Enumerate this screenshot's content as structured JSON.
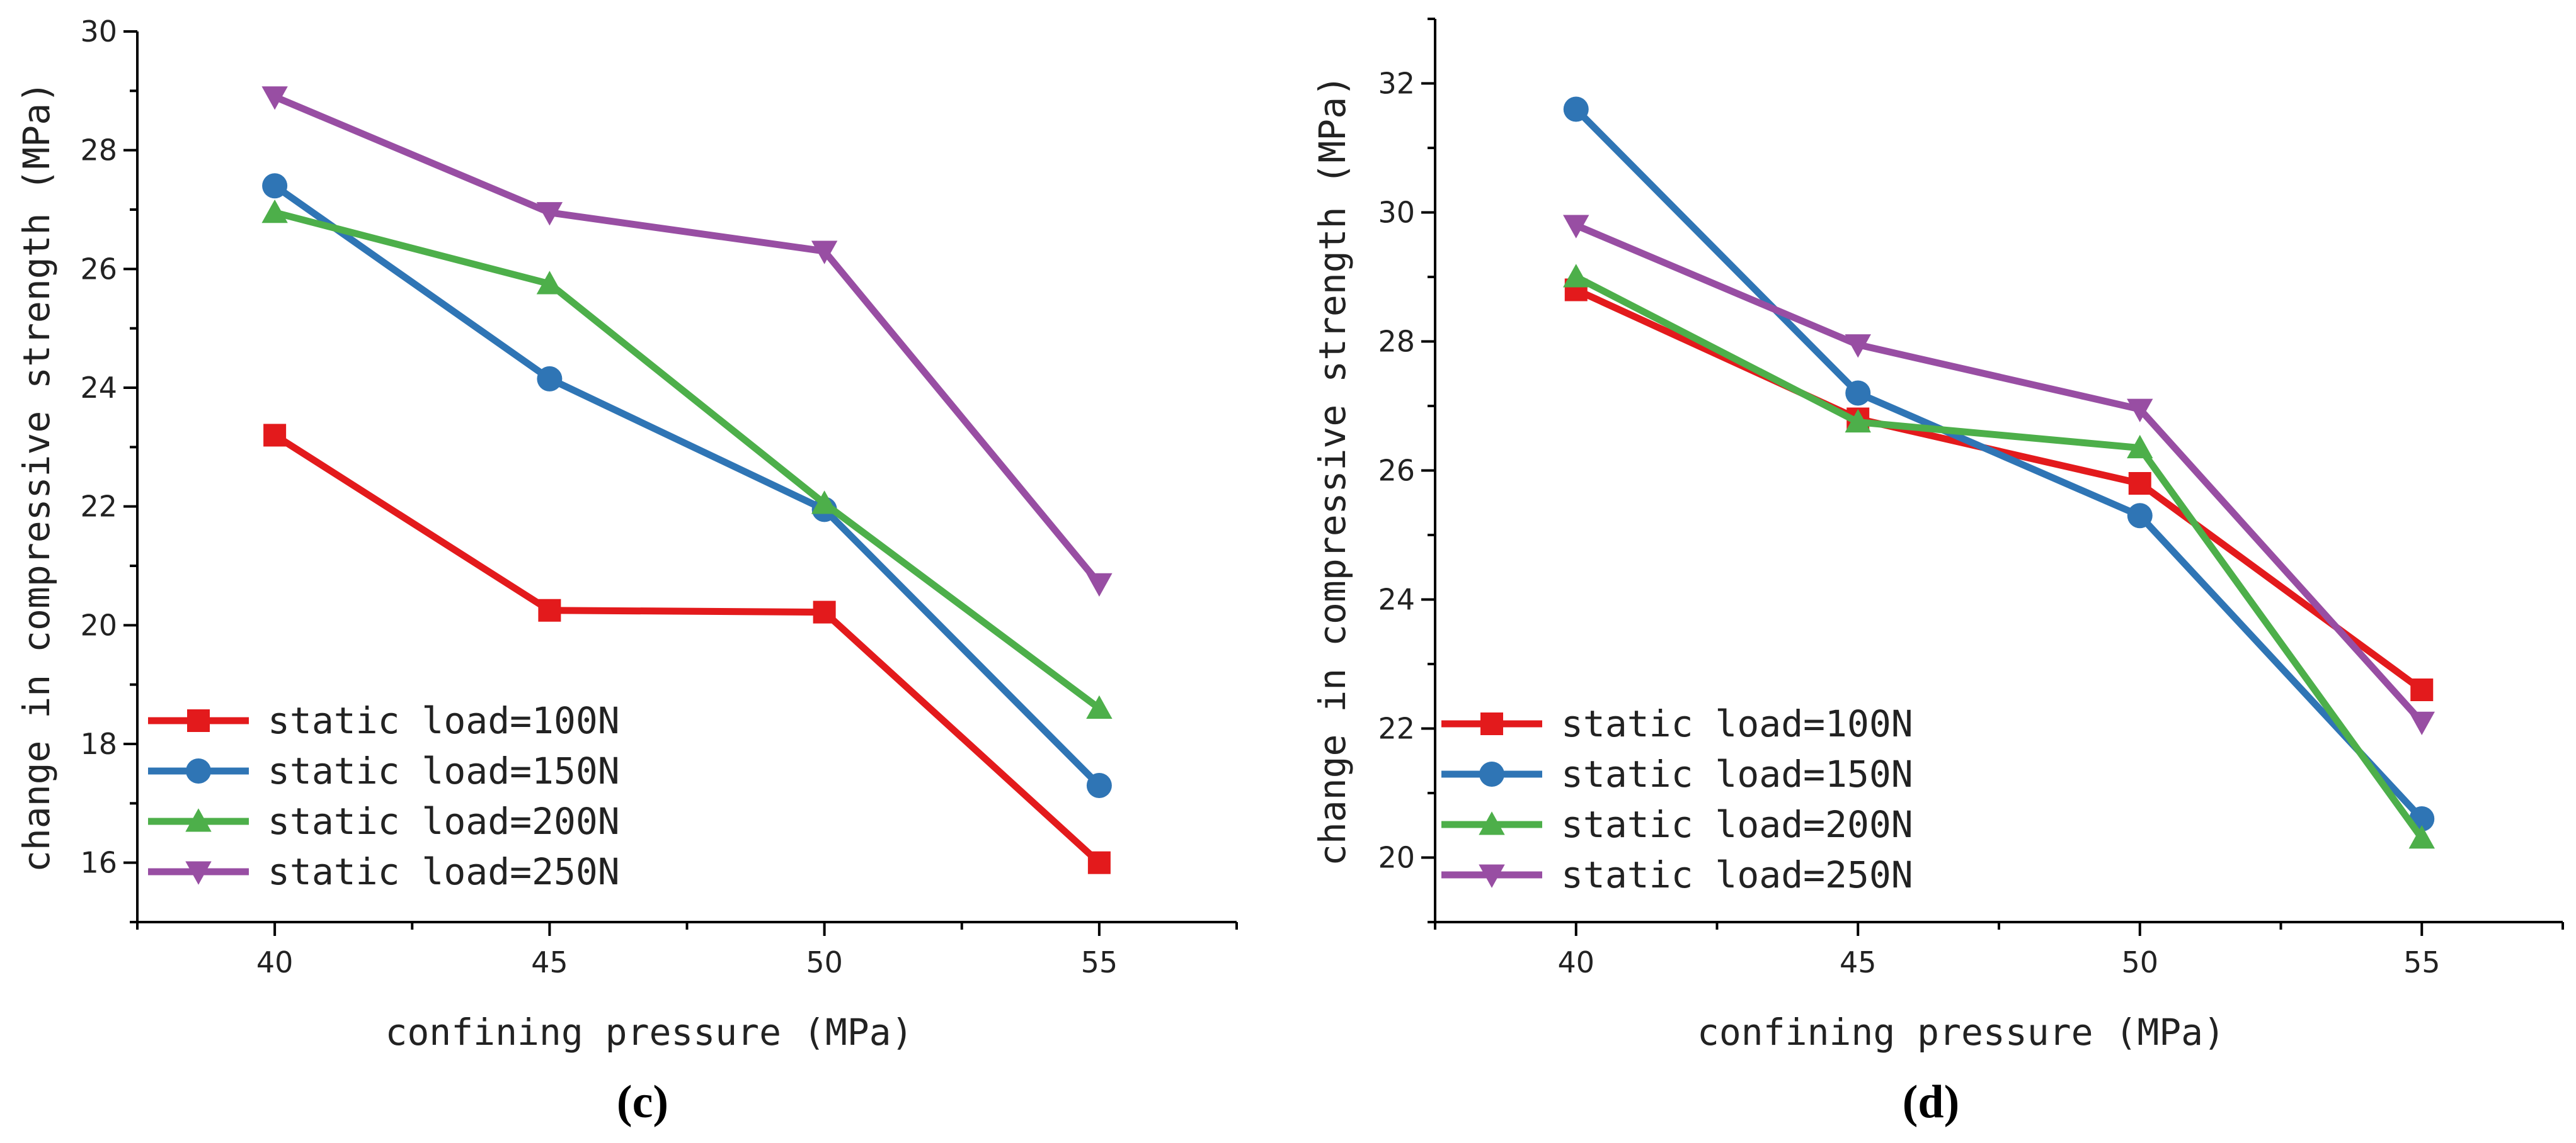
{
  "chart_data": [
    {
      "type": "line",
      "panel_label": "(c)",
      "xlabel": "confining pressure (MPa)",
      "ylabel": "change in compressive strength (MPa)",
      "x": [
        40,
        45,
        50,
        55
      ],
      "xticks": [
        40,
        45,
        50,
        55
      ],
      "xlim": [
        37.5,
        57.5
      ],
      "ylim": [
        15,
        30
      ],
      "yticks": [
        16,
        18,
        20,
        22,
        24,
        26,
        28,
        30
      ],
      "legend_position": "bottom-left",
      "series": [
        {
          "name": "static load=100N",
          "color": "#e31a1c",
          "marker": "square",
          "values": [
            23.2,
            20.25,
            20.22,
            16.0
          ]
        },
        {
          "name": "static load=150N",
          "color": "#2f75b5",
          "marker": "circle",
          "values": [
            27.4,
            24.15,
            21.95,
            17.3
          ]
        },
        {
          "name": "static load=200N",
          "color": "#4daf4a",
          "marker": "triangle-up",
          "values": [
            26.95,
            25.75,
            22.05,
            18.6
          ]
        },
        {
          "name": "static load=250N",
          "color": "#984ea3",
          "marker": "triangle-down",
          "values": [
            28.9,
            26.95,
            26.3,
            20.7
          ]
        }
      ]
    },
    {
      "type": "line",
      "panel_label": "(d)",
      "xlabel": "confining pressure (MPa)",
      "ylabel": "change in compressive strength (MPa)",
      "x": [
        40,
        45,
        50,
        55
      ],
      "xticks": [
        40,
        45,
        50,
        55
      ],
      "xlim": [
        37.5,
        57.5
      ],
      "ylim": [
        19,
        33
      ],
      "yticks": [
        20,
        22,
        24,
        26,
        28,
        30,
        32
      ],
      "legend_position": "bottom-left",
      "series": [
        {
          "name": "static load=100N",
          "color": "#e31a1c",
          "marker": "square",
          "values": [
            28.8,
            26.8,
            25.8,
            22.6
          ]
        },
        {
          "name": "static load=150N",
          "color": "#2f75b5",
          "marker": "circle",
          "values": [
            31.6,
            27.2,
            25.3,
            20.6
          ]
        },
        {
          "name": "static load=200N",
          "color": "#4daf4a",
          "marker": "triangle-up",
          "values": [
            29.0,
            26.75,
            26.35,
            20.3
          ]
        },
        {
          "name": "static load=250N",
          "color": "#984ea3",
          "marker": "triangle-down",
          "values": [
            29.8,
            27.95,
            26.95,
            22.1
          ]
        }
      ]
    }
  ]
}
